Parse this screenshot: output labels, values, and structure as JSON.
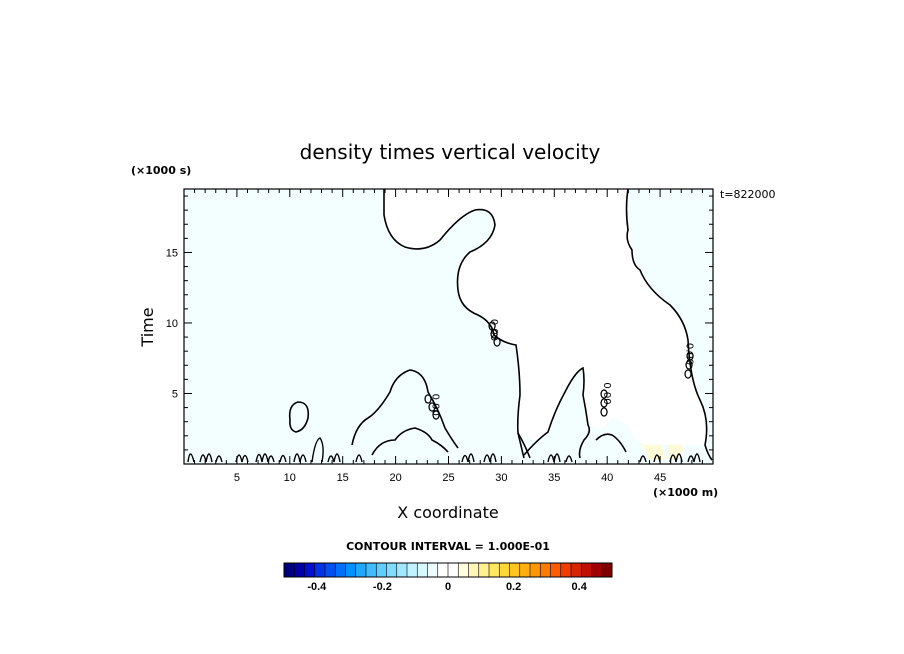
{
  "chart_data": {
    "type": "heatmap",
    "title": "density times vertical velocity",
    "xlabel": "X coordinate",
    "ylabel": "Time",
    "x_unit": "(×1000 m)",
    "y_unit": "(×1000 s)",
    "xlim": [
      0,
      50
    ],
    "ylim": [
      0,
      19.5
    ],
    "x_ticks": [
      5,
      10,
      15,
      20,
      25,
      30,
      35,
      40,
      45
    ],
    "y_ticks": [
      5,
      10,
      15
    ],
    "timestamp_label": "t=822000",
    "contour_interval_label": "CONTOUR INTERVAL = 1.000E-01",
    "contour_labels": [
      {
        "text": "0.00",
        "x": 23.5,
        "y": 4.2
      },
      {
        "text": "0.00",
        "x": 29.0,
        "y": 9.5
      },
      {
        "text": "0.00",
        "x": 39.7,
        "y": 5.0
      },
      {
        "text": "0.00",
        "x": 47.5,
        "y": 7.8
      }
    ],
    "background_value_color": "#f2feff",
    "zero_color": "#ffffff",
    "positive_patches": [
      {
        "x": [
          41.5,
          43.5,
          45.5,
          44.0,
          41.5
        ],
        "y": [
          6.3,
          6.3,
          0.3,
          0.3,
          4.0
        ]
      },
      {
        "x": [
          45.8,
          47.2,
          46.6,
          45.8
        ],
        "y": [
          3.8,
          1.0,
          0.3,
          0.3
        ]
      }
    ],
    "colorbar": {
      "vmin": -0.5,
      "vmax": 0.5,
      "tick_labels": [
        "-0.4",
        "-0.2",
        "0",
        "0.2",
        "0.4"
      ],
      "tick_values": [
        -0.4,
        -0.2,
        0,
        0.2,
        0.4
      ],
      "colors": [
        "#00007f",
        "#0000a6",
        "#0010cc",
        "#0032e6",
        "#0050f0",
        "#0070f8",
        "#0090ff",
        "#20a8ff",
        "#40bcff",
        "#60ccff",
        "#80dcff",
        "#a0e8ff",
        "#c0f2ff",
        "#d8f8ff",
        "#ecfcff",
        "#ffffff",
        "#ffffff",
        "#fffce0",
        "#fff6b8",
        "#fff090",
        "#ffe860",
        "#ffd838",
        "#ffc420",
        "#ffb010",
        "#ff9800",
        "#ff7c00",
        "#ff5c00",
        "#f03c00",
        "#d82400",
        "#c00e00",
        "#a00000",
        "#800000"
      ]
    }
  }
}
